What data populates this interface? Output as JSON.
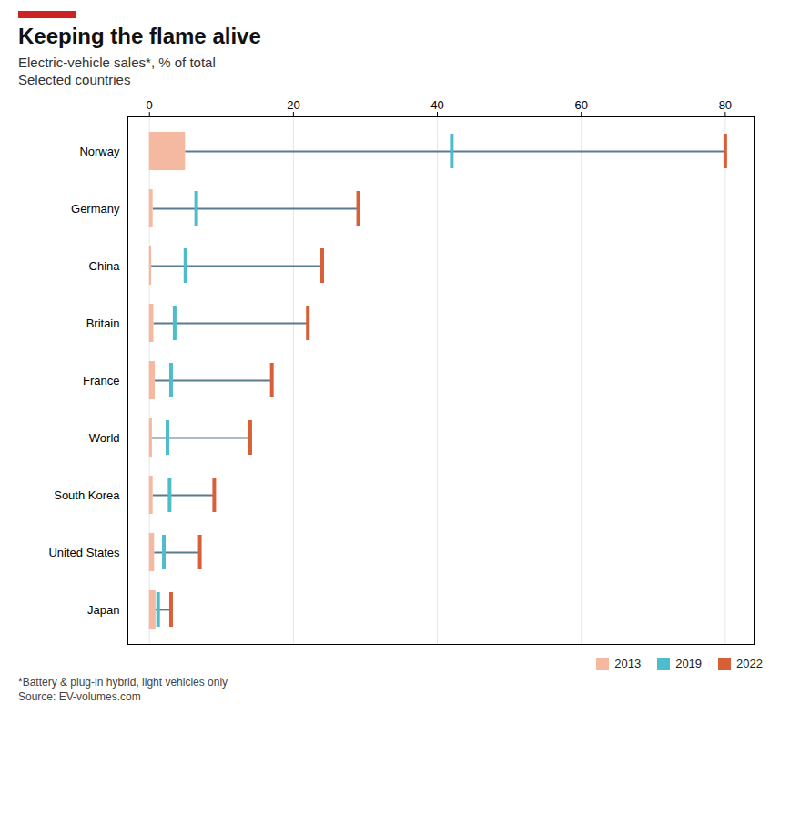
{
  "chart_data": {
    "type": "bar",
    "orientation": "horizontal",
    "title": "Keeping the flame alive",
    "subtitle": [
      "Electric-vehicle sales*, % of total",
      "Selected countries"
    ],
    "footnotes": [
      "*Battery & plug-in hybrid, light vehicles only",
      "Source: EV-volumes.com"
    ],
    "categories": [
      "Norway",
      "Germany",
      "China",
      "Britain",
      "France",
      "World",
      "South Korea",
      "United States",
      "Japan"
    ],
    "series": [
      {
        "name": "2013",
        "type": "bar",
        "color": "#f5b8a0",
        "values": [
          5.0,
          0.5,
          0.3,
          0.6,
          0.8,
          0.4,
          0.5,
          0.7,
          0.9
        ]
      },
      {
        "name": "2019",
        "type": "tick",
        "color": "#4dbdcc",
        "values": [
          42.0,
          6.5,
          5.0,
          3.5,
          3.0,
          2.5,
          2.8,
          2.0,
          1.2
        ]
      },
      {
        "name": "2022",
        "type": "tick",
        "color": "#d95f38",
        "values": [
          80.0,
          29.0,
          24.0,
          22.0,
          17.0,
          14.0,
          9.0,
          7.0,
          3.0
        ]
      }
    ],
    "xlim": [
      -3,
      84
    ],
    "xticks": [
      0,
      20,
      40,
      60,
      80
    ],
    "grid": true,
    "legend": "lower right"
  }
}
